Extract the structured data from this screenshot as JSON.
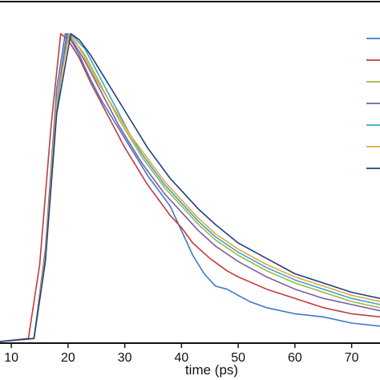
{
  "chart_data": {
    "type": "line",
    "title": "",
    "xlabel": "time (ps)",
    "ylabel": "",
    "xlim": [
      8,
      75
    ],
    "ylim": [
      0,
      1
    ],
    "x_ticks": [
      10,
      20,
      30,
      40,
      50,
      60,
      70
    ],
    "grid": false,
    "legend": {
      "placement": "right",
      "entries_visible": 7
    },
    "series": [
      {
        "color": "#3d79c4",
        "points": [
          [
            8,
            0
          ],
          [
            14,
            0.01
          ],
          [
            16,
            0.3
          ],
          [
            18,
            0.82
          ],
          [
            19.5,
            1
          ],
          [
            20.5,
            0.98
          ],
          [
            22,
            0.93
          ],
          [
            24,
            0.85
          ],
          [
            26,
            0.78
          ],
          [
            28,
            0.72
          ],
          [
            30,
            0.66
          ],
          [
            32,
            0.6
          ],
          [
            34,
            0.54
          ],
          [
            36,
            0.49
          ],
          [
            38,
            0.44
          ],
          [
            40,
            0.36
          ],
          [
            42,
            0.28
          ],
          [
            44,
            0.22
          ],
          [
            46,
            0.18
          ],
          [
            48,
            0.17
          ],
          [
            50,
            0.15
          ],
          [
            52,
            0.13
          ],
          [
            55,
            0.11
          ],
          [
            60,
            0.09
          ],
          [
            65,
            0.08
          ],
          [
            70,
            0.06
          ],
          [
            75,
            0.05
          ]
        ]
      },
      {
        "color": "#c23b3f",
        "points": [
          [
            8,
            0
          ],
          [
            13,
            0.01
          ],
          [
            15,
            0.25
          ],
          [
            17,
            0.7
          ],
          [
            18.7,
            1
          ],
          [
            20,
            0.98
          ],
          [
            22,
            0.92
          ],
          [
            24,
            0.84
          ],
          [
            26,
            0.77
          ],
          [
            28,
            0.7
          ],
          [
            30,
            0.63
          ],
          [
            32,
            0.57
          ],
          [
            34,
            0.51
          ],
          [
            36,
            0.46
          ],
          [
            38,
            0.41
          ],
          [
            40,
            0.37
          ],
          [
            42,
            0.32
          ],
          [
            45,
            0.27
          ],
          [
            48,
            0.23
          ],
          [
            50,
            0.21
          ],
          [
            55,
            0.17
          ],
          [
            60,
            0.14
          ],
          [
            65,
            0.11
          ],
          [
            70,
            0.09
          ],
          [
            75,
            0.08
          ]
        ]
      },
      {
        "color": "#9bb843",
        "points": [
          [
            8,
            0
          ],
          [
            14,
            0.01
          ],
          [
            16,
            0.28
          ],
          [
            18,
            0.78
          ],
          [
            19.8,
            1
          ],
          [
            21,
            0.98
          ],
          [
            23,
            0.93
          ],
          [
            25,
            0.86
          ],
          [
            27,
            0.79
          ],
          [
            29,
            0.72
          ],
          [
            31,
            0.66
          ],
          [
            33,
            0.6
          ],
          [
            35,
            0.55
          ],
          [
            37,
            0.5
          ],
          [
            40,
            0.44
          ],
          [
            43,
            0.38
          ],
          [
            46,
            0.33
          ],
          [
            50,
            0.28
          ],
          [
            55,
            0.23
          ],
          [
            60,
            0.19
          ],
          [
            65,
            0.16
          ],
          [
            70,
            0.13
          ],
          [
            75,
            0.11
          ]
        ]
      },
      {
        "color": "#7c5aa8",
        "points": [
          [
            8,
            0
          ],
          [
            14,
            0.01
          ],
          [
            16,
            0.28
          ],
          [
            18,
            0.78
          ],
          [
            19.8,
            1
          ],
          [
            21,
            0.97
          ],
          [
            23,
            0.91
          ],
          [
            25,
            0.84
          ],
          [
            27,
            0.77
          ],
          [
            29,
            0.7
          ],
          [
            31,
            0.64
          ],
          [
            33,
            0.58
          ],
          [
            35,
            0.53
          ],
          [
            37,
            0.48
          ],
          [
            40,
            0.42
          ],
          [
            43,
            0.36
          ],
          [
            46,
            0.31
          ],
          [
            50,
            0.26
          ],
          [
            55,
            0.21
          ],
          [
            60,
            0.17
          ],
          [
            65,
            0.14
          ],
          [
            70,
            0.12
          ],
          [
            75,
            0.1
          ]
        ]
      },
      {
        "color": "#3aa5c5",
        "points": [
          [
            8,
            0
          ],
          [
            14,
            0.01
          ],
          [
            16,
            0.27
          ],
          [
            18,
            0.76
          ],
          [
            20,
            1
          ],
          [
            21,
            0.99
          ],
          [
            23,
            0.95
          ],
          [
            25,
            0.88
          ],
          [
            27,
            0.81
          ],
          [
            29,
            0.74
          ],
          [
            31,
            0.67
          ],
          [
            33,
            0.61
          ],
          [
            35,
            0.56
          ],
          [
            37,
            0.51
          ],
          [
            40,
            0.45
          ],
          [
            43,
            0.39
          ],
          [
            46,
            0.34
          ],
          [
            50,
            0.29
          ],
          [
            55,
            0.24
          ],
          [
            60,
            0.2
          ],
          [
            65,
            0.17
          ],
          [
            70,
            0.14
          ],
          [
            75,
            0.12
          ]
        ]
      },
      {
        "color": "#e6a63a",
        "points": [
          [
            8,
            0
          ],
          [
            14,
            0.01
          ],
          [
            16,
            0.28
          ],
          [
            18,
            0.78
          ],
          [
            20.2,
            1
          ],
          [
            21.5,
            0.97
          ],
          [
            23,
            0.92
          ],
          [
            25,
            0.85
          ],
          [
            27,
            0.79
          ],
          [
            29,
            0.73
          ],
          [
            31,
            0.67
          ],
          [
            33,
            0.62
          ],
          [
            35,
            0.57
          ],
          [
            37,
            0.52
          ],
          [
            40,
            0.46
          ],
          [
            43,
            0.4
          ],
          [
            46,
            0.35
          ],
          [
            50,
            0.3
          ],
          [
            55,
            0.25
          ],
          [
            60,
            0.21
          ],
          [
            65,
            0.18
          ],
          [
            70,
            0.15
          ],
          [
            75,
            0.13
          ]
        ]
      },
      {
        "color": "#1f3f7a",
        "points": [
          [
            8,
            0
          ],
          [
            14,
            0.01
          ],
          [
            16,
            0.26
          ],
          [
            18,
            0.74
          ],
          [
            20.5,
            1
          ],
          [
            22,
            0.98
          ],
          [
            24,
            0.93
          ],
          [
            26,
            0.87
          ],
          [
            28,
            0.81
          ],
          [
            30,
            0.75
          ],
          [
            32,
            0.69
          ],
          [
            34,
            0.63
          ],
          [
            36,
            0.58
          ],
          [
            38,
            0.53
          ],
          [
            40,
            0.49
          ],
          [
            43,
            0.43
          ],
          [
            46,
            0.38
          ],
          [
            50,
            0.32
          ],
          [
            55,
            0.27
          ],
          [
            60,
            0.22
          ],
          [
            65,
            0.19
          ],
          [
            70,
            0.16
          ],
          [
            75,
            0.14
          ]
        ]
      }
    ]
  }
}
